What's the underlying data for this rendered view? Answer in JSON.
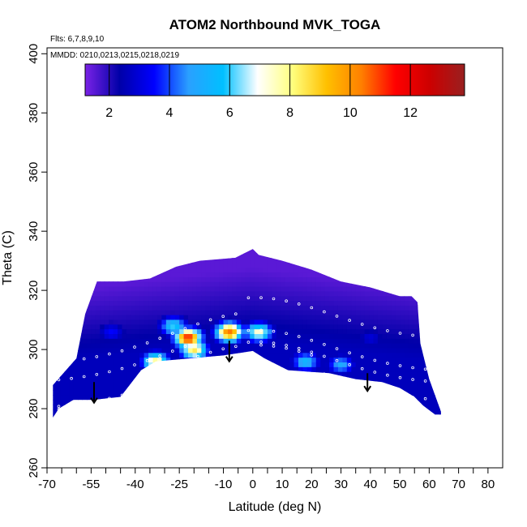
{
  "chart_data": {
    "type": "heatmap",
    "title": "ATOM2 Northbound MVK_TOGA",
    "flights_label": "Flts: 6,7,8,9,10",
    "dates_label": "MMDD: 0210,0213,0215,0218,0219",
    "xlabel": "Latitude (deg N)",
    "ylabel": "Theta (C)",
    "xlim": [
      -70,
      85
    ],
    "ylim": [
      260,
      402
    ],
    "x_ticks": [
      -70,
      -55,
      -40,
      -25,
      -10,
      0,
      10,
      20,
      30,
      40,
      50,
      60,
      70,
      80
    ],
    "x_minor_ticks": [
      -65,
      -60,
      -50,
      -45,
      -35,
      -30,
      -20,
      -15,
      -5,
      5,
      15,
      25,
      35,
      45,
      55,
      65,
      75
    ],
    "y_ticks": [
      260,
      280,
      300,
      320,
      340,
      360,
      380,
      400
    ],
    "colorbar": {
      "range": [
        1.2,
        13.8
      ],
      "ticks": [
        2,
        4,
        6,
        8,
        10,
        12
      ],
      "stops": [
        "#7a22e6",
        "#0000a8",
        "#0000ff",
        "#2aa0ff",
        "#00c0ff",
        "#ffffff",
        "#ffff80",
        "#ffc000",
        "#ff8000",
        "#ff0000",
        "#cc0000",
        "#992020"
      ]
    },
    "data_extent": {
      "lower_boundary": [
        [
          -68,
          277
        ],
        [
          -66,
          280
        ],
        [
          -61,
          283
        ],
        [
          -54,
          283
        ],
        [
          -45,
          284
        ],
        [
          -38,
          293
        ],
        [
          -33,
          296
        ],
        [
          -10,
          298
        ],
        [
          0,
          299.5
        ],
        [
          4,
          297
        ],
        [
          12,
          293
        ],
        [
          26,
          292
        ],
        [
          35,
          290
        ],
        [
          44,
          289
        ],
        [
          50,
          287
        ],
        [
          55,
          284
        ],
        [
          58,
          281
        ],
        [
          62,
          278
        ],
        [
          64,
          278
        ]
      ],
      "upper_boundary": [
        [
          -68,
          288
        ],
        [
          -60,
          297
        ],
        [
          -57,
          312
        ],
        [
          -53,
          323
        ],
        [
          -44,
          323
        ],
        [
          -35,
          324
        ],
        [
          -26,
          328
        ],
        [
          -18,
          330
        ],
        [
          -6,
          331
        ],
        [
          0,
          334
        ],
        [
          2,
          332
        ],
        [
          10,
          330
        ],
        [
          20,
          327
        ],
        [
          30,
          323
        ],
        [
          40,
          321
        ],
        [
          50,
          318
        ],
        [
          54,
          318
        ],
        [
          56,
          316
        ],
        [
          57,
          302
        ],
        [
          60,
          290
        ],
        [
          64,
          279
        ]
      ]
    },
    "hotspots": [
      {
        "lat": -22,
        "theta": 304,
        "value": 11.5
      },
      {
        "lat": -8,
        "theta": 306,
        "value": 10.5
      },
      {
        "lat": 2,
        "theta": 306,
        "value": 7.5
      },
      {
        "lat": -20,
        "theta": 300,
        "value": 8.5
      },
      {
        "lat": -33,
        "theta": 296,
        "value": 8
      },
      {
        "lat": -27,
        "theta": 308,
        "value": 6
      },
      {
        "lat": 18,
        "theta": 296,
        "value": 5.5
      },
      {
        "lat": 30,
        "theta": 295,
        "value": 5
      },
      {
        "lat": -48,
        "theta": 306,
        "value": 3.5
      },
      {
        "lat": 40,
        "theta": 304,
        "value": 3
      }
    ],
    "arrows": [
      {
        "lat": -54,
        "theta_from": 289,
        "theta_to": 282
      },
      {
        "lat": -8,
        "theta_from": 303,
        "theta_to": 296
      },
      {
        "lat": 39,
        "theta_from": 292,
        "theta_to": 286
      }
    ]
  }
}
